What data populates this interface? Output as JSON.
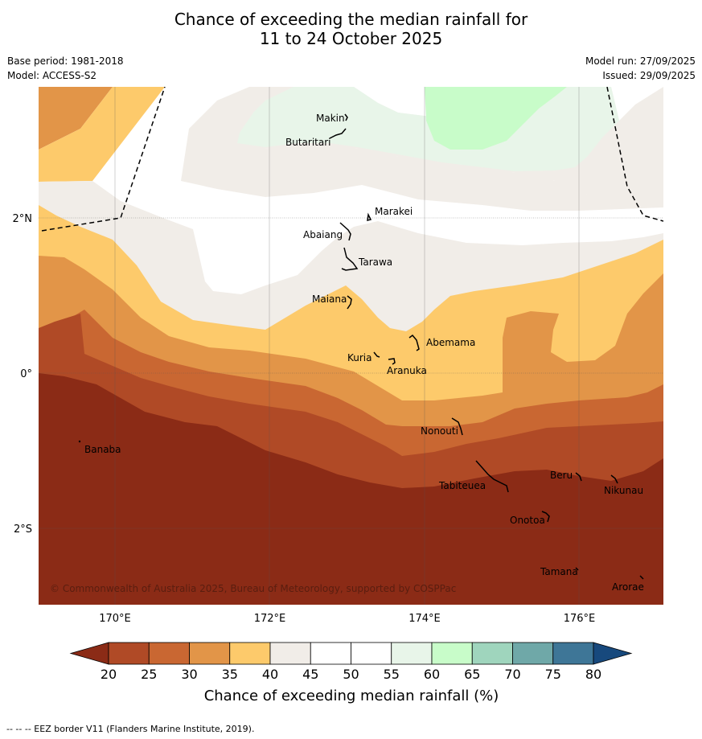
{
  "title": {
    "line1": "Chance of exceeding the median rainfall for",
    "line2": "11 to 24 October 2025"
  },
  "meta": {
    "base_period": "Base period: 1981-2018",
    "model": "Model: ACCESS-S2",
    "model_run": "Model run: 27/09/2025",
    "issued": "Issued: 29/09/2025"
  },
  "map": {
    "lat_ticks": [
      {
        "value": 2,
        "label": "2°N"
      },
      {
        "value": 0,
        "label": "0°"
      },
      {
        "value": -2,
        "label": "2°S"
      }
    ],
    "lon_ticks": [
      {
        "value": 170,
        "label": "170°E"
      },
      {
        "value": 172,
        "label": "172°E"
      },
      {
        "value": 174,
        "label": "174°E"
      },
      {
        "value": 176,
        "label": "176°E"
      }
    ],
    "places": [
      {
        "name": "Makin"
      },
      {
        "name": "Butaritari"
      },
      {
        "name": "Marakei"
      },
      {
        "name": "Abaiang"
      },
      {
        "name": "Tarawa"
      },
      {
        "name": "Maiana"
      },
      {
        "name": "Abemama"
      },
      {
        "name": "Kuria"
      },
      {
        "name": "Aranuka"
      },
      {
        "name": "Banaba"
      },
      {
        "name": "Nonouti"
      },
      {
        "name": "Beru"
      },
      {
        "name": "Tabiteuea"
      },
      {
        "name": "Nikunau"
      },
      {
        "name": "Onotoa"
      },
      {
        "name": "Tamana"
      },
      {
        "name": "Arorae"
      }
    ],
    "copyright": "© Commonwealth of Australia 2025, Bureau of Meteorology, supported by COSPPac"
  },
  "colorbar": {
    "ticks": [
      "20",
      "25",
      "30",
      "35",
      "40",
      "45",
      "50",
      "55",
      "60",
      "65",
      "70",
      "75",
      "80"
    ],
    "colors": {
      "under": "#8b2b16",
      "b20_25": "#b04a26",
      "b25_30": "#c96732",
      "b30_35": "#e29548",
      "b35_40": "#fdca6b",
      "b40_45": "#f1ede8",
      "b45_50": "#ffffff",
      "b50_55": "#ffffff",
      "b55_60": "#e8f5e9",
      "b60_65": "#c8fcc9",
      "b65_70": "#9fd5bd",
      "b70_75": "#6fa8a8",
      "b75_80": "#3e7697",
      "over": "#17497d"
    },
    "label": "Chance of exceeding median rainfall (%)"
  },
  "footnote": "--  --  -- EEZ border V11 (Flanders Marine Institute, 2019)."
}
